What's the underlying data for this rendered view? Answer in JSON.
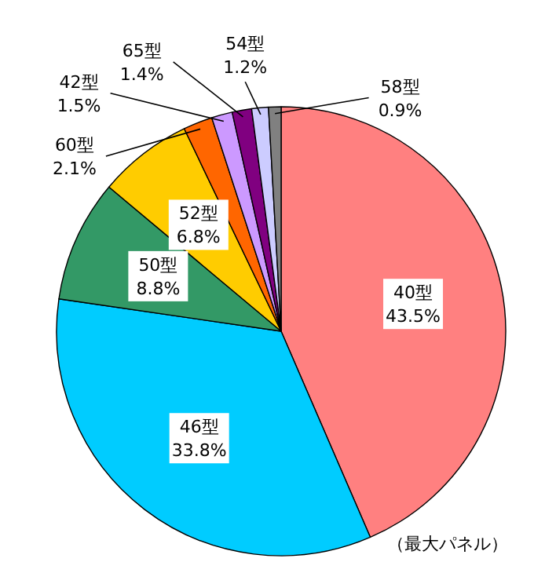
{
  "chart_data": {
    "type": "pie",
    "categories": [
      "40型",
      "46型",
      "50型",
      "52型",
      "60型",
      "42型",
      "65型",
      "54型",
      "58型"
    ],
    "values": [
      43.5,
      33.8,
      8.8,
      6.8,
      2.1,
      1.5,
      1.4,
      1.2,
      0.9
    ],
    "value_labels": [
      "43.5%",
      "33.8%",
      "8.8%",
      "6.8%",
      "2.1%",
      "1.5%",
      "1.4%",
      "1.2%",
      "0.9%"
    ],
    "colors": [
      "#ff8080",
      "#00ccff",
      "#339966",
      "#ffcc00",
      "#ff6600",
      "#cc99ff",
      "#800080",
      "#ccccff",
      "#808080"
    ],
    "annotations": [
      "（最大パネル）"
    ]
  }
}
